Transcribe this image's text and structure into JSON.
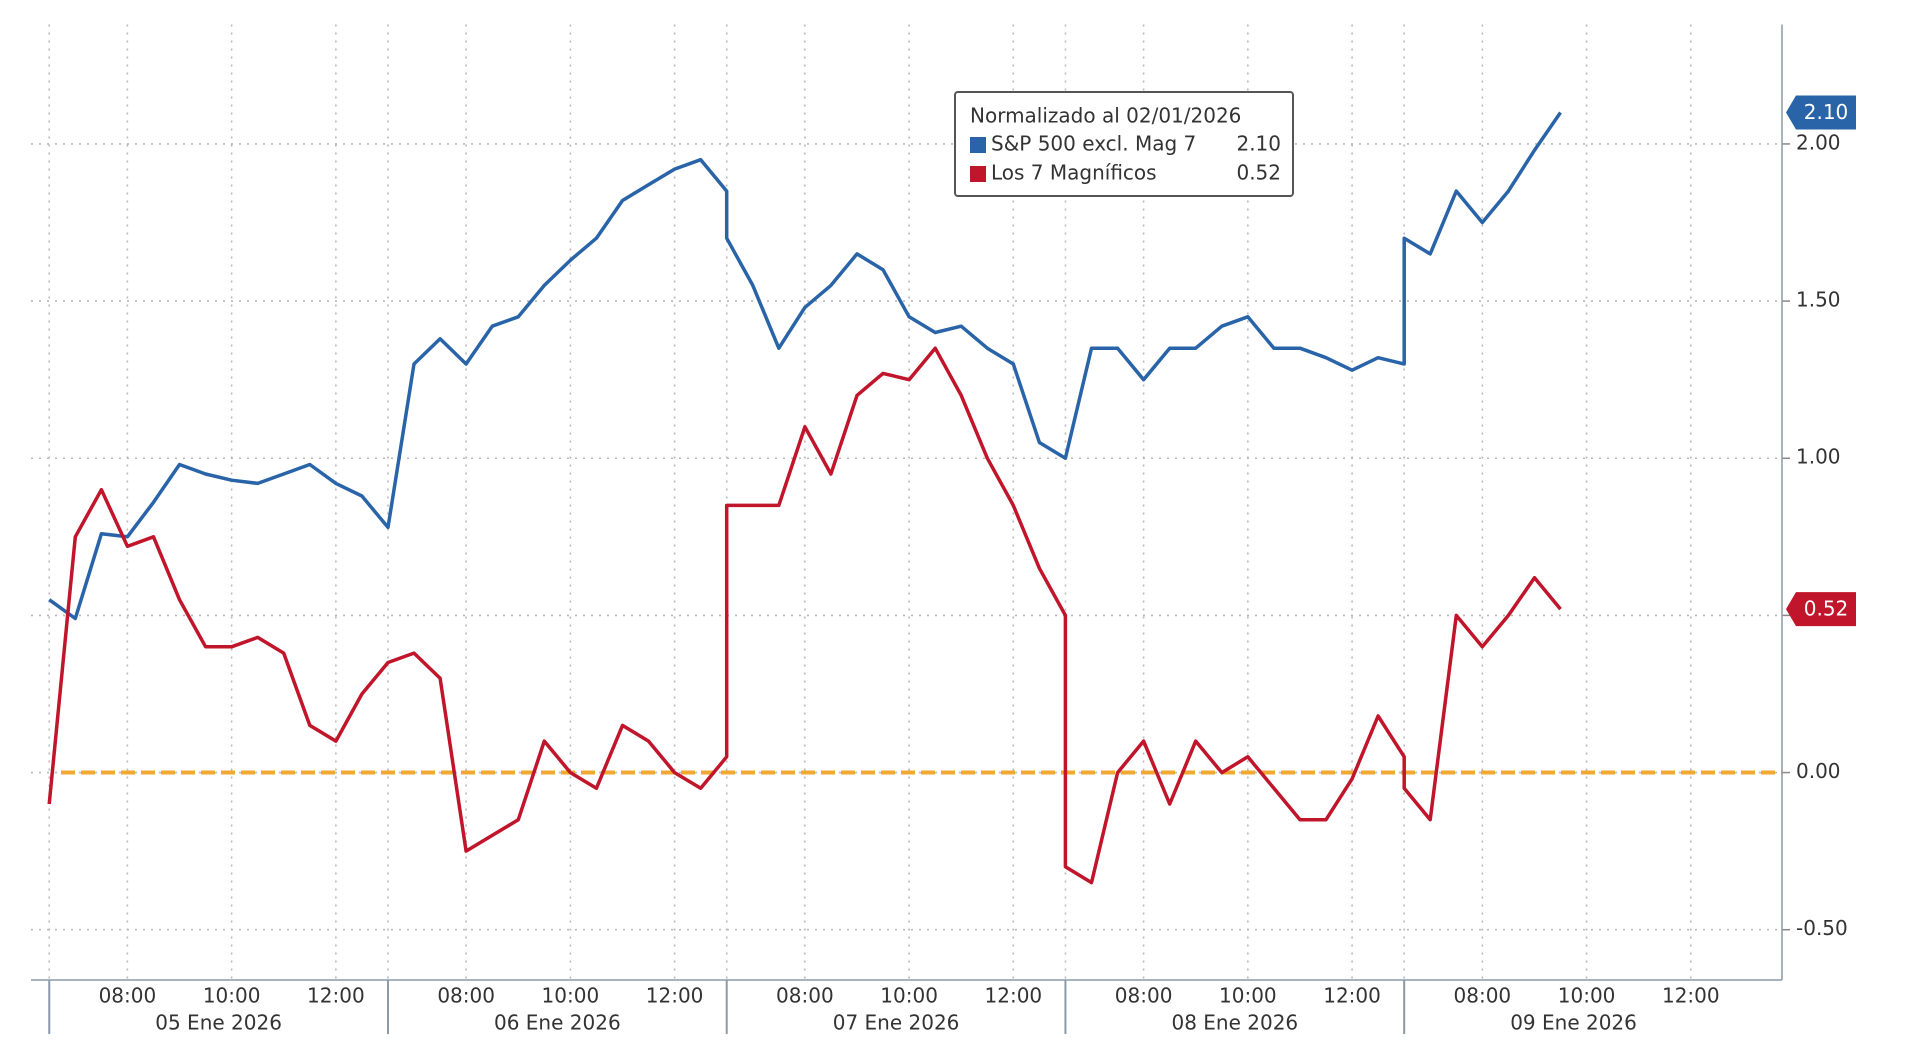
{
  "chart_data": {
    "type": "line",
    "legend_title": "Normalizado al 02/01/2026",
    "days": [
      "05 Ene 2026",
      "06 Ene 2026",
      "07 Ene 2026",
      "08 Ene 2026",
      "09 Ene 2026"
    ],
    "x": [
      "05 Ene 2026 06:30",
      "05 Ene 2026 07:00",
      "05 Ene 2026 07:30",
      "05 Ene 2026 08:00",
      "05 Ene 2026 08:30",
      "05 Ene 2026 09:00",
      "05 Ene 2026 09:30",
      "05 Ene 2026 10:00",
      "05 Ene 2026 10:30",
      "05 Ene 2026 11:00",
      "05 Ene 2026 11:30",
      "05 Ene 2026 12:00",
      "05 Ene 2026 12:30",
      "05 Ene 2026 13:00",
      "06 Ene 2026 06:30",
      "06 Ene 2026 07:00",
      "06 Ene 2026 07:30",
      "06 Ene 2026 08:00",
      "06 Ene 2026 08:30",
      "06 Ene 2026 09:00",
      "06 Ene 2026 09:30",
      "06 Ene 2026 10:00",
      "06 Ene 2026 10:30",
      "06 Ene 2026 11:00",
      "06 Ene 2026 11:30",
      "06 Ene 2026 12:00",
      "06 Ene 2026 12:30",
      "06 Ene 2026 13:00",
      "07 Ene 2026 06:30",
      "07 Ene 2026 07:00",
      "07 Ene 2026 07:30",
      "07 Ene 2026 08:00",
      "07 Ene 2026 08:30",
      "07 Ene 2026 09:00",
      "07 Ene 2026 09:30",
      "07 Ene 2026 10:00",
      "07 Ene 2026 10:30",
      "07 Ene 2026 11:00",
      "07 Ene 2026 11:30",
      "07 Ene 2026 12:00",
      "07 Ene 2026 12:30",
      "07 Ene 2026 13:00",
      "08 Ene 2026 06:30",
      "08 Ene 2026 07:00",
      "08 Ene 2026 07:30",
      "08 Ene 2026 08:00",
      "08 Ene 2026 08:30",
      "08 Ene 2026 09:00",
      "08 Ene 2026 09:30",
      "08 Ene 2026 10:00",
      "08 Ene 2026 10:30",
      "08 Ene 2026 11:00",
      "08 Ene 2026 11:30",
      "08 Ene 2026 12:00",
      "08 Ene 2026 12:30",
      "08 Ene 2026 13:00",
      "09 Ene 2026 06:30",
      "09 Ene 2026 07:00",
      "09 Ene 2026 07:30",
      "09 Ene 2026 08:00",
      "09 Ene 2026 08:30",
      "09 Ene 2026 09:00",
      "09 Ene 2026 09:30"
    ],
    "series": [
      {
        "name": "S&P 500 excl. Mag 7",
        "color": "#2a64a8",
        "values": [
          0.55,
          0.49,
          0.76,
          0.75,
          0.86,
          0.98,
          0.95,
          0.93,
          0.92,
          0.95,
          0.98,
          0.92,
          0.88,
          0.78,
          0.78,
          1.3,
          1.38,
          1.3,
          1.42,
          1.45,
          1.55,
          1.63,
          1.7,
          1.82,
          1.87,
          1.92,
          1.95,
          1.85,
          1.7,
          1.55,
          1.35,
          1.48,
          1.55,
          1.65,
          1.6,
          1.45,
          1.4,
          1.42,
          1.35,
          1.3,
          1.05,
          1.0,
          1.0,
          1.35,
          1.35,
          1.25,
          1.35,
          1.35,
          1.42,
          1.45,
          1.35,
          1.35,
          1.32,
          1.28,
          1.32,
          1.3,
          1.7,
          1.65,
          1.85,
          1.75,
          1.85,
          1.98,
          2.1
        ],
        "value_labels": [
          null,
          null,
          null,
          null,
          null,
          null,
          null,
          null,
          null,
          null,
          null,
          null,
          null,
          null,
          null,
          null,
          null,
          null,
          null,
          null,
          null,
          null,
          null,
          null,
          null,
          null,
          null,
          null,
          null,
          null,
          null,
          null,
          null,
          null,
          null,
          null,
          null,
          null,
          null,
          null,
          null,
          null,
          null,
          null,
          null,
          null,
          null,
          null,
          null,
          null,
          null,
          null,
          null,
          null,
          null,
          null,
          null,
          null,
          null,
          null,
          null,
          null,
          "2.10"
        ]
      },
      {
        "name": "Los 7 Magníficos",
        "color": "#c0152a",
        "values": [
          -0.1,
          0.75,
          0.9,
          0.72,
          0.75,
          0.55,
          0.4,
          0.4,
          0.43,
          0.38,
          0.15,
          0.1,
          0.25,
          0.35,
          0.35,
          0.38,
          0.3,
          -0.25,
          -0.2,
          -0.15,
          0.1,
          0.0,
          -0.05,
          0.15,
          0.1,
          0.0,
          -0.05,
          0.05,
          0.85,
          0.85,
          0.85,
          1.1,
          0.95,
          1.2,
          1.27,
          1.25,
          1.35,
          1.2,
          1.0,
          0.85,
          0.65,
          0.5,
          -0.3,
          -0.35,
          0.0,
          0.1,
          -0.1,
          0.1,
          0.0,
          0.05,
          -0.05,
          -0.15,
          -0.15,
          -0.02,
          0.18,
          0.05,
          -0.05,
          -0.15,
          0.5,
          0.4,
          0.5,
          0.62,
          0.52
        ],
        "value_labels": [
          null,
          null,
          null,
          null,
          null,
          null,
          null,
          null,
          null,
          null,
          null,
          null,
          null,
          null,
          null,
          null,
          null,
          null,
          null,
          null,
          null,
          null,
          null,
          null,
          null,
          null,
          null,
          null,
          null,
          null,
          null,
          null,
          null,
          null,
          null,
          null,
          null,
          null,
          null,
          null,
          null,
          null,
          null,
          null,
          null,
          null,
          null,
          null,
          null,
          null,
          null,
          null,
          null,
          null,
          null,
          null,
          null,
          null,
          null,
          null,
          null,
          null,
          "0.52"
        ]
      }
    ],
    "reference_line": {
      "value": 0,
      "color": "#f0a830"
    },
    "xlim": [
      "05 Ene 2026 06:09",
      "09 Ene 2026 13:45"
    ],
    "xticks": [
      {
        "value": "05 Ene 2026 08:00",
        "label": "08:00"
      },
      {
        "value": "05 Ene 2026 10:00",
        "label": "10:00"
      },
      {
        "value": "05 Ene 2026 12:00",
        "label": "12:00"
      },
      {
        "value": "06 Ene 2026 08:00",
        "label": "08:00"
      },
      {
        "value": "06 Ene 2026 10:00",
        "label": "10:00"
      },
      {
        "value": "06 Ene 2026 12:00",
        "label": "12:00"
      },
      {
        "value": "07 Ene 2026 08:00",
        "label": "08:00"
      },
      {
        "value": "07 Ene 2026 10:00",
        "label": "10:00"
      },
      {
        "value": "07 Ene 2026 12:00",
        "label": "12:00"
      },
      {
        "value": "08 Ene 2026 08:00",
        "label": "08:00"
      },
      {
        "value": "08 Ene 2026 10:00",
        "label": "10:00"
      },
      {
        "value": "08 Ene 2026 12:00",
        "label": "12:00"
      },
      {
        "value": "09 Ene 2026 08:00",
        "label": "08:00"
      },
      {
        "value": "09 Ene 2026 10:00",
        "label": "10:00"
      },
      {
        "value": "09 Ene 2026 12:00",
        "label": "12:00"
      }
    ],
    "ylim": [
      -0.66,
      2.38
    ],
    "yticks": [
      {
        "value": -0.5,
        "label": "-0.50"
      },
      {
        "value": 0,
        "label": "0.00"
      },
      {
        "value": 0.5,
        "label": "0.50"
      },
      {
        "value": 1,
        "label": "1.00"
      },
      {
        "value": 1.5,
        "label": "1.50"
      },
      {
        "value": 2,
        "label": "2.00"
      }
    ],
    "y_axis_side": "right",
    "grid": true,
    "legend_position": "top"
  }
}
